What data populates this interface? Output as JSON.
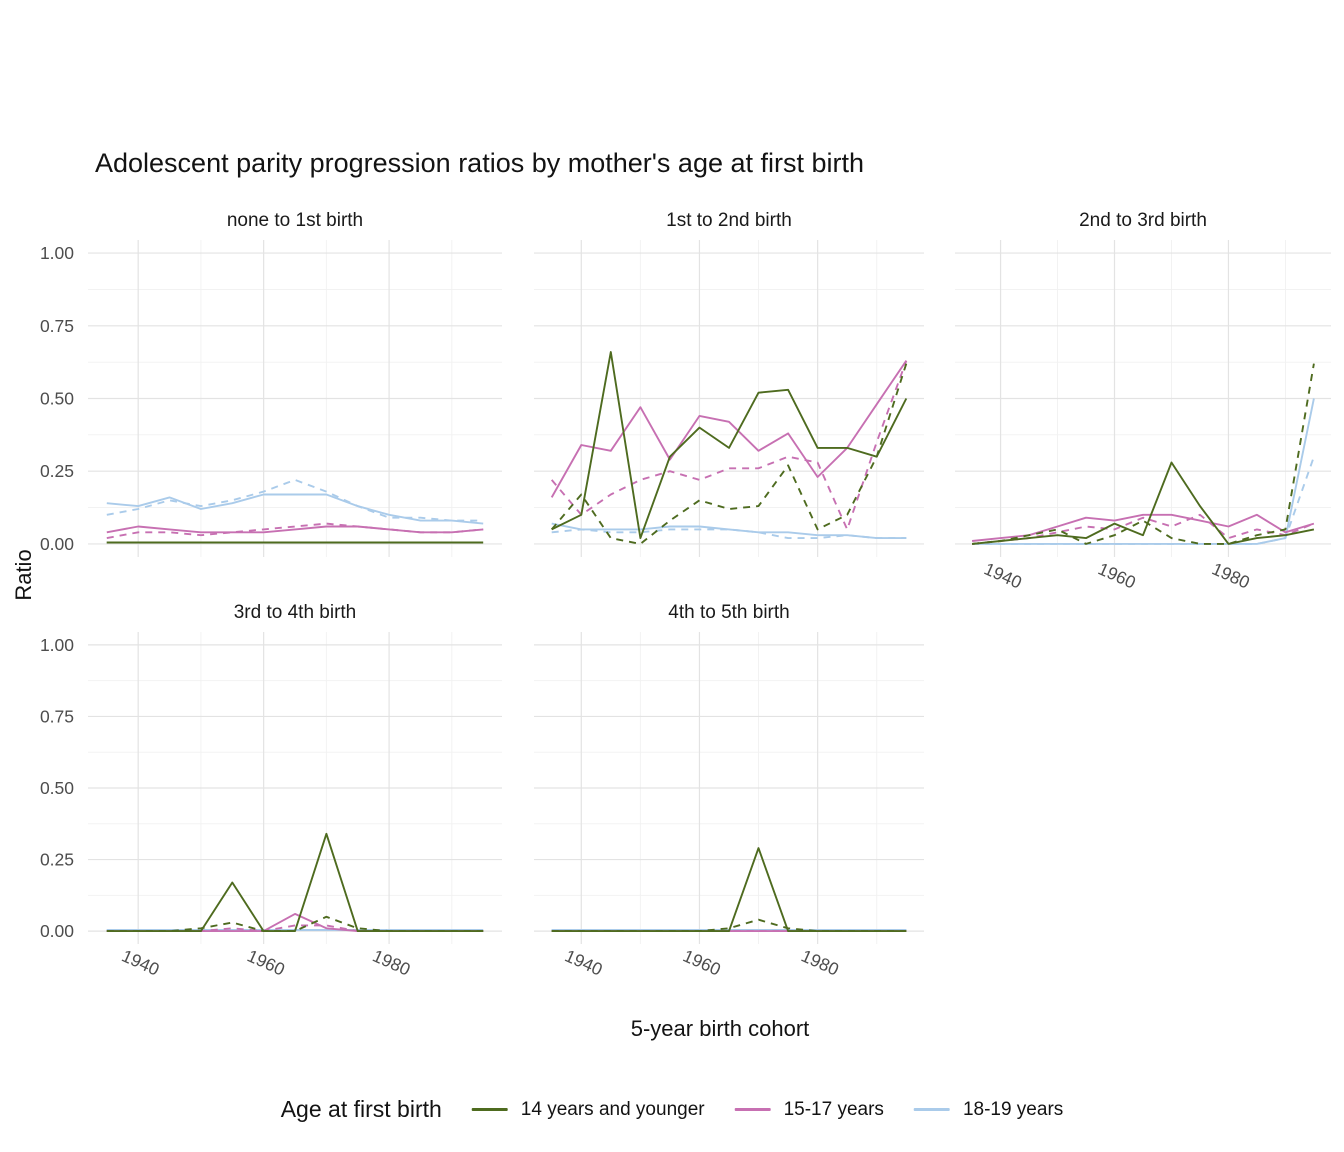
{
  "title": "Adolescent parity progression ratios by mother's age at first birth",
  "axes": {
    "x_label": "5-year birth cohort",
    "y_label": "Ratio"
  },
  "legend": {
    "title": "Age at first birth",
    "items": [
      {
        "label": "14 years and younger",
        "color": "#4e6b1f"
      },
      {
        "label": "15-17 years",
        "color": "#c770b2"
      },
      {
        "label": "18-19 years",
        "color": "#aacbea"
      }
    ]
  },
  "chart_data": {
    "type": "line",
    "x": [
      1935,
      1940,
      1945,
      1950,
      1955,
      1960,
      1965,
      1970,
      1975,
      1980,
      1985,
      1990,
      1995
    ],
    "x_ticks": [
      1940,
      1960,
      1980
    ],
    "y_ticks": [
      0.0,
      0.25,
      0.5,
      0.75,
      1.0
    ],
    "ylim": [
      0,
      1
    ],
    "grid": true,
    "legend_position": "bottom",
    "facets": [
      {
        "label": "none to 1st birth",
        "series": [
          {
            "group": "18-19 years",
            "linetype": "solid",
            "values": [
              0.14,
              0.13,
              0.16,
              0.12,
              0.14,
              0.17,
              0.17,
              0.17,
              0.13,
              0.1,
              0.08,
              0.08,
              0.07
            ]
          },
          {
            "group": "18-19 years",
            "linetype": "dashed",
            "values": [
              0.1,
              0.12,
              0.15,
              0.13,
              0.15,
              0.18,
              0.22,
              0.18,
              0.13,
              0.09,
              0.09,
              0.08,
              0.08
            ]
          },
          {
            "group": "15-17 years",
            "linetype": "solid",
            "values": [
              0.04,
              0.06,
              0.05,
              0.04,
              0.04,
              0.04,
              0.05,
              0.06,
              0.06,
              0.05,
              0.04,
              0.04,
              0.05
            ]
          },
          {
            "group": "15-17 years",
            "linetype": "dashed",
            "values": [
              0.02,
              0.04,
              0.04,
              0.03,
              0.04,
              0.05,
              0.06,
              0.07,
              0.06,
              0.05,
              0.04,
              0.04,
              0.05
            ]
          },
          {
            "group": "14 years and younger",
            "linetype": "dashed",
            "values": [
              0.005,
              0.005,
              0.005,
              0.005,
              0.005,
              0.005,
              0.005,
              0.005,
              0.005,
              0.005,
              0.005,
              0.005,
              0.005
            ]
          },
          {
            "group": "14 years and younger",
            "linetype": "solid",
            "values": [
              0.005,
              0.005,
              0.005,
              0.005,
              0.005,
              0.005,
              0.005,
              0.005,
              0.005,
              0.005,
              0.005,
              0.005,
              0.005
            ]
          }
        ]
      },
      {
        "label": "1st to 2nd birth",
        "series": [
          {
            "group": "18-19 years",
            "linetype": "solid",
            "values": [
              0.07,
              0.05,
              0.05,
              0.05,
              0.06,
              0.06,
              0.05,
              0.04,
              0.04,
              0.03,
              0.03,
              0.02,
              0.02
            ]
          },
          {
            "group": "18-19 years",
            "linetype": "dashed",
            "values": [
              0.04,
              0.05,
              0.04,
              0.04,
              0.05,
              0.05,
              0.05,
              0.04,
              0.02,
              0.02,
              0.03,
              0.02,
              0.02
            ]
          },
          {
            "group": "15-17 years",
            "linetype": "solid",
            "values": [
              0.16,
              0.34,
              0.32,
              0.47,
              0.29,
              0.44,
              0.42,
              0.32,
              0.38,
              0.23,
              0.33,
              0.48,
              0.63
            ]
          },
          {
            "group": "15-17 years",
            "linetype": "dashed",
            "values": [
              0.22,
              0.1,
              0.17,
              0.22,
              0.25,
              0.22,
              0.26,
              0.26,
              0.3,
              0.28,
              0.05,
              0.35,
              0.63
            ]
          },
          {
            "group": "14 years and younger",
            "linetype": "dashed",
            "values": [
              0.05,
              0.17,
              0.02,
              0.0,
              0.08,
              0.15,
              0.12,
              0.13,
              0.27,
              0.05,
              0.1,
              0.3,
              0.62
            ]
          },
          {
            "group": "14 years and younger",
            "linetype": "solid",
            "values": [
              0.05,
              0.1,
              0.66,
              0.02,
              0.3,
              0.4,
              0.33,
              0.52,
              0.53,
              0.33,
              0.33,
              0.3,
              0.5
            ]
          }
        ]
      },
      {
        "label": "2nd to 3rd birth",
        "series": [
          {
            "group": "18-19 years",
            "linetype": "solid",
            "values": [
              0.0,
              0.0,
              0.0,
              0.0,
              0.0,
              0.0,
              0.0,
              0.0,
              0.0,
              0.0,
              0.0,
              0.02,
              0.5
            ]
          },
          {
            "group": "18-19 years",
            "linetype": "dashed",
            "values": [
              0.0,
              0.0,
              0.0,
              0.0,
              0.0,
              0.0,
              0.0,
              0.0,
              0.0,
              0.0,
              0.0,
              0.02,
              0.3
            ]
          },
          {
            "group": "15-17 years",
            "linetype": "solid",
            "values": [
              0.01,
              0.02,
              0.03,
              0.06,
              0.09,
              0.08,
              0.1,
              0.1,
              0.08,
              0.06,
              0.1,
              0.04,
              0.07
            ]
          },
          {
            "group": "15-17 years",
            "linetype": "dashed",
            "values": [
              0.0,
              0.01,
              0.02,
              0.04,
              0.06,
              0.05,
              0.09,
              0.06,
              0.1,
              0.02,
              0.05,
              0.03,
              0.07
            ]
          },
          {
            "group": "14 years and younger",
            "linetype": "dashed",
            "values": [
              0.0,
              0.01,
              0.03,
              0.05,
              0.0,
              0.03,
              0.08,
              0.02,
              0.0,
              0.0,
              0.03,
              0.05,
              0.62
            ]
          },
          {
            "group": "14 years and younger",
            "linetype": "solid",
            "values": [
              0.0,
              0.01,
              0.02,
              0.03,
              0.02,
              0.07,
              0.03,
              0.28,
              0.13,
              0.0,
              0.02,
              0.03,
              0.05
            ]
          }
        ]
      },
      {
        "label": "3rd to 4th birth",
        "series": [
          {
            "group": "18-19 years",
            "linetype": "solid",
            "values": [
              0.004,
              0.004,
              0.004,
              0.004,
              0.004,
              0.004,
              0.004,
              0.004,
              0.004,
              0.004,
              0.004,
              0.004,
              0.004
            ]
          },
          {
            "group": "18-19 years",
            "linetype": "dashed",
            "values": [
              0.004,
              0.004,
              0.004,
              0.004,
              0.004,
              0.004,
              0.004,
              0.004,
              0.004,
              0.004,
              0.004,
              0.004,
              0.004
            ]
          },
          {
            "group": "15-17 years",
            "linetype": "solid",
            "values": [
              0.0,
              0.0,
              0.0,
              0.0,
              0.0,
              0.0,
              0.06,
              0.01,
              0.0,
              0.0,
              0.0,
              0.0,
              0.0
            ]
          },
          {
            "group": "15-17 years",
            "linetype": "dashed",
            "values": [
              0.0,
              0.0,
              0.0,
              0.0,
              0.01,
              0.0,
              0.02,
              0.02,
              0.0,
              0.0,
              0.0,
              0.0,
              0.0
            ]
          },
          {
            "group": "14 years and younger",
            "linetype": "dashed",
            "values": [
              0.0,
              0.0,
              0.0,
              0.01,
              0.03,
              0.0,
              0.0,
              0.05,
              0.01,
              0.0,
              0.0,
              0.0,
              0.0
            ]
          },
          {
            "group": "14 years and younger",
            "linetype": "solid",
            "values": [
              0.0,
              0.0,
              0.0,
              0.0,
              0.17,
              0.0,
              0.0,
              0.34,
              0.0,
              0.0,
              0.0,
              0.0,
              0.0
            ]
          }
        ]
      },
      {
        "label": "4th to 5th birth",
        "series": [
          {
            "group": "18-19 years",
            "linetype": "solid",
            "values": [
              0.004,
              0.004,
              0.004,
              0.004,
              0.004,
              0.004,
              0.004,
              0.004,
              0.004,
              0.004,
              0.004,
              0.004,
              0.004
            ]
          },
          {
            "group": "18-19 years",
            "linetype": "dashed",
            "values": [
              0.004,
              0.004,
              0.004,
              0.004,
              0.004,
              0.004,
              0.004,
              0.004,
              0.004,
              0.004,
              0.004,
              0.004,
              0.004
            ]
          },
          {
            "group": "15-17 years",
            "linetype": "solid",
            "values": [
              0.0,
              0.0,
              0.0,
              0.0,
              0.0,
              0.0,
              0.0,
              0.0,
              0.0,
              0.0,
              0.0,
              0.0,
              0.0
            ]
          },
          {
            "group": "15-17 years",
            "linetype": "dashed",
            "values": [
              0.0,
              0.0,
              0.0,
              0.0,
              0.0,
              0.0,
              0.0,
              0.0,
              0.0,
              0.0,
              0.0,
              0.0,
              0.0
            ]
          },
          {
            "group": "14 years and younger",
            "linetype": "dashed",
            "values": [
              0.0,
              0.0,
              0.0,
              0.0,
              0.0,
              0.0,
              0.01,
              0.04,
              0.01,
              0.0,
              0.0,
              0.0,
              0.0
            ]
          },
          {
            "group": "14 years and younger",
            "linetype": "solid",
            "values": [
              0.0,
              0.0,
              0.0,
              0.0,
              0.0,
              0.0,
              0.0,
              0.29,
              0.0,
              0.0,
              0.0,
              0.0,
              0.0
            ]
          }
        ]
      }
    ]
  }
}
